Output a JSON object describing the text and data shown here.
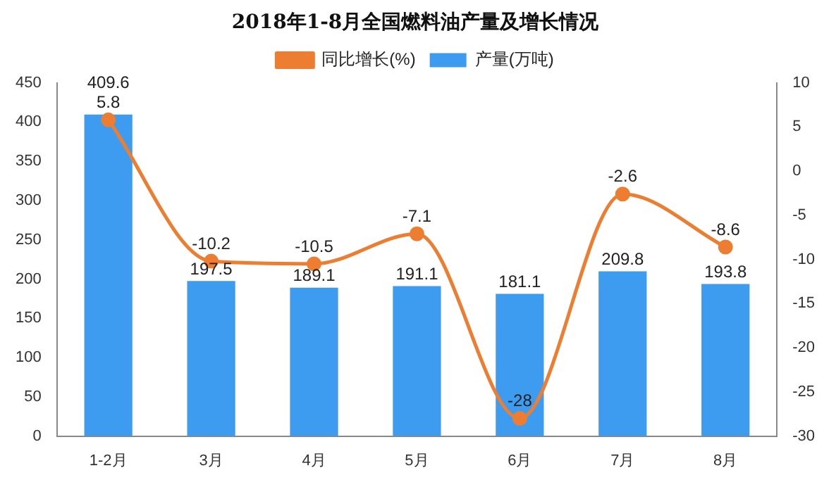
{
  "chart_data": {
    "type": "bar",
    "title": "2018年1-8月全国燃料油产量及增长情况",
    "categories": [
      "1-2月",
      "3月",
      "4月",
      "5月",
      "6月",
      "7月",
      "8月"
    ],
    "series": [
      {
        "name": "产量(万吨)",
        "color": "#3e9cf0",
        "values": [
          409.6,
          197.5,
          189.1,
          191.1,
          181.1,
          209.8,
          193.8
        ]
      },
      {
        "name": "同比增长(%)",
        "type": "line",
        "axis": "y2",
        "color": "#ed7d31",
        "values": [
          5.8,
          -10.2,
          -10.5,
          -7.1,
          -28,
          -2.6,
          -8.6
        ]
      }
    ],
    "ylim": [
      0,
      450
    ],
    "yticks": [
      0,
      50,
      100,
      150,
      200,
      250,
      300,
      350,
      400,
      450
    ],
    "y2lim": [
      -30,
      10
    ],
    "y2ticks": [
      -30,
      -25,
      -20,
      -15,
      -10,
      -5,
      0,
      5,
      10
    ],
    "legend": "top",
    "marker": "circle",
    "data_labels": true,
    "grid": false
  }
}
